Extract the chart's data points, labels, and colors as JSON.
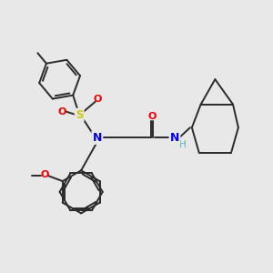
{
  "bg_color": "#e8e8e8",
  "bond_color": "#2a2a2a",
  "N_color": "#0000ee",
  "O_color": "#ee0000",
  "S_color": "#cccc00",
  "H_color": "#4ab5b5",
  "lw": 1.4,
  "lw_thin": 1.0,
  "xlim": [
    0,
    7.5
  ],
  "ylim": [
    0,
    7.5
  ]
}
